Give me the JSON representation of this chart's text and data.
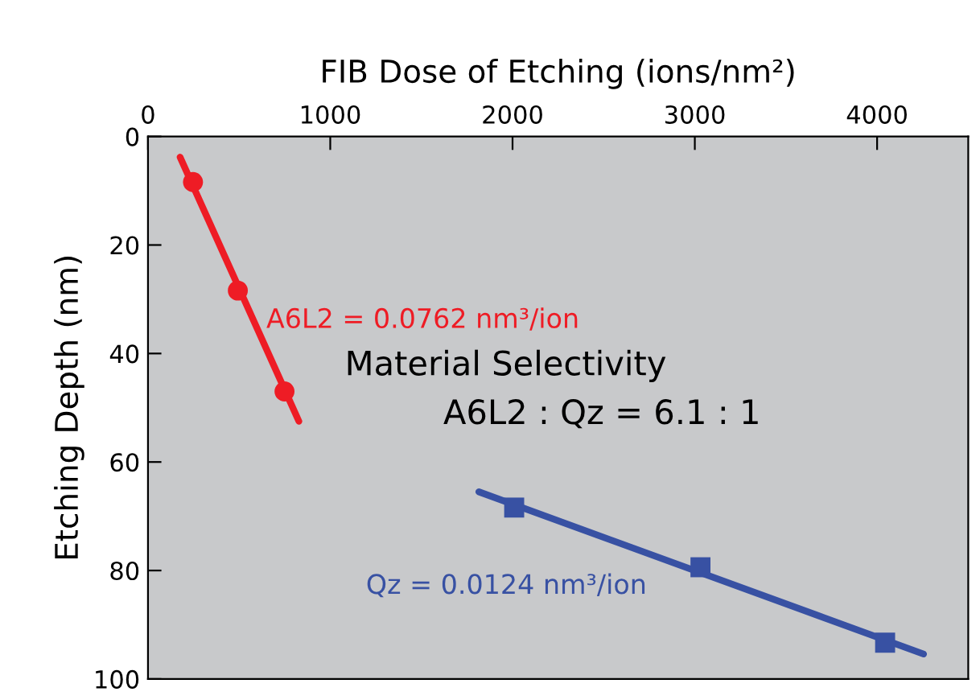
{
  "chart_data": {
    "type": "scatter",
    "xlabel": "FIB Dose of Etching (ions/nm²)",
    "ylabel": "Etching Depth (nm)",
    "xlim": [
      0,
      4500
    ],
    "xticks": [
      0,
      1000,
      2000,
      3000,
      4000
    ],
    "ylim": [
      100,
      0
    ],
    "yticks": [
      0,
      20,
      40,
      60,
      80,
      100
    ],
    "grid": false,
    "legend": false,
    "series": [
      {
        "color": "#ee1c25",
        "marker": "circle",
        "x": [
          247,
          493,
          749
        ],
        "values": [
          8.4,
          28.4,
          47.0
        ]
      },
      {
        "type": "line",
        "name": "A6L2 = 0.0762 nm³/ion",
        "color": "#ee1c25",
        "marker": "none",
        "line_style": "solid",
        "x": [
          176,
          828
        ],
        "values": [
          3.8,
          52.5
        ]
      },
      {
        "color": "#3851a3",
        "marker": "square",
        "x": [
          2009,
          3031,
          4044
        ],
        "values": [
          68.4,
          79.4,
          93.3
        ]
      },
      {
        "type": "line",
        "name": "Qz = 0.0124 nm³/ion",
        "color": "#3851a3",
        "marker": "none",
        "line_style": "solid",
        "x": [
          1815,
          4255
        ],
        "values": [
          65.5,
          95.4
        ]
      }
    ],
    "annotations": [
      "Material Selectivity",
      "A6L2 : Qz = 6.1 : 1"
    ]
  }
}
